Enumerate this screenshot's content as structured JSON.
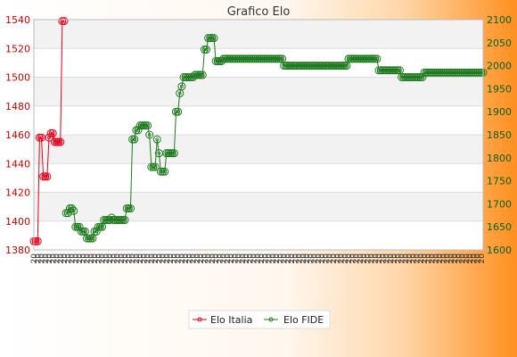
{
  "chart_data": {
    "type": "line",
    "title": "Grafico Elo",
    "left_axis": {
      "min": 1380,
      "max": 1540,
      "ticks": [
        "1380",
        "1400",
        "1420",
        "1440",
        "1460",
        "1480",
        "1500",
        "1520",
        "1540"
      ]
    },
    "right_axis": {
      "min": 1600,
      "max": 2100,
      "ticks": [
        "1600",
        "1650",
        "1700",
        "1750",
        "1800",
        "1850",
        "1900",
        "1950",
        "2000",
        "2050",
        "2100"
      ]
    },
    "grid": true,
    "legend_position": "bottom",
    "x_label_glyph": "20",
    "series": [
      {
        "name": "Elo Italia",
        "axis": "left",
        "color": "#e8001a",
        "values": [
          1386,
          1386,
          1386,
          1458,
          1458,
          1431,
          1431,
          1431,
          1458,
          1461,
          1461,
          1455,
          1455,
          1455,
          1455,
          1539,
          1539
        ]
      },
      {
        "name": "Elo FIDE",
        "axis": "right",
        "color": "#1e7a1e",
        "start_index": 17,
        "values": [
          1680,
          1680,
          1690,
          1690,
          1685,
          1650,
          1650,
          1650,
          1640,
          1640,
          1640,
          1625,
          1625,
          1625,
          1625,
          1640,
          1640,
          1650,
          1650,
          1650,
          1665,
          1665,
          1665,
          1665,
          1670,
          1665,
          1665,
          1665,
          1665,
          1665,
          1665,
          1665,
          1690,
          1690,
          1690,
          1840,
          1840,
          1860,
          1860,
          1870,
          1870,
          1870,
          1870,
          1870,
          1850,
          1780,
          1780,
          1780,
          1840,
          1810,
          1770,
          1770,
          1770,
          1810,
          1810,
          1810,
          1810,
          1810,
          1900,
          1900,
          1940,
          1955,
          1975,
          1975,
          1975,
          1975,
          1975,
          1975,
          1980,
          1980,
          1980,
          1980,
          1980,
          2035,
          2035,
          2060,
          2060,
          2060,
          2060,
          2010,
          2010,
          2010,
          2010,
          2015,
          2015,
          2015,
          2015,
          2015,
          2015,
          2015,
          2015,
          2015,
          2015,
          2015,
          2015,
          2015,
          2015,
          2015,
          2015,
          2015,
          2015,
          2015,
          2015,
          2015,
          2015,
          2015,
          2015,
          2015,
          2015,
          2015,
          2015,
          2015,
          2015,
          2015,
          2015,
          2000,
          2000,
          2000,
          2000,
          2000,
          2000,
          2000,
          2000,
          2000,
          2000,
          2000,
          2000,
          2000,
          2000,
          2000,
          2000,
          2000,
          2000,
          2000,
          2000,
          2000,
          2000,
          2000,
          2000,
          2000,
          2000,
          2000,
          2000,
          2000,
          2000,
          2000,
          2000,
          2000,
          2000,
          2015,
          2015,
          2015,
          2015,
          2015,
          2015,
          2015,
          2015,
          2015,
          2015,
          2015,
          2015,
          2015,
          2015,
          2015,
          2015,
          1990,
          1990,
          1990,
          1990,
          1990,
          1990,
          1990,
          1990,
          1990,
          1990,
          1990,
          1990,
          1975,
          1975,
          1975,
          1975,
          1975,
          1975,
          1975,
          1975,
          1975,
          1975,
          1975,
          1975,
          1985,
          1985,
          1985,
          1985,
          1985,
          1985,
          1985,
          1985,
          1985,
          1985,
          1985,
          1985,
          1985,
          1985,
          1985,
          1985,
          1985,
          1985,
          1985,
          1985,
          1985,
          1985,
          1985,
          1985,
          1985,
          1985,
          1985,
          1985,
          1985,
          1985,
          1985,
          1985
        ]
      }
    ]
  }
}
